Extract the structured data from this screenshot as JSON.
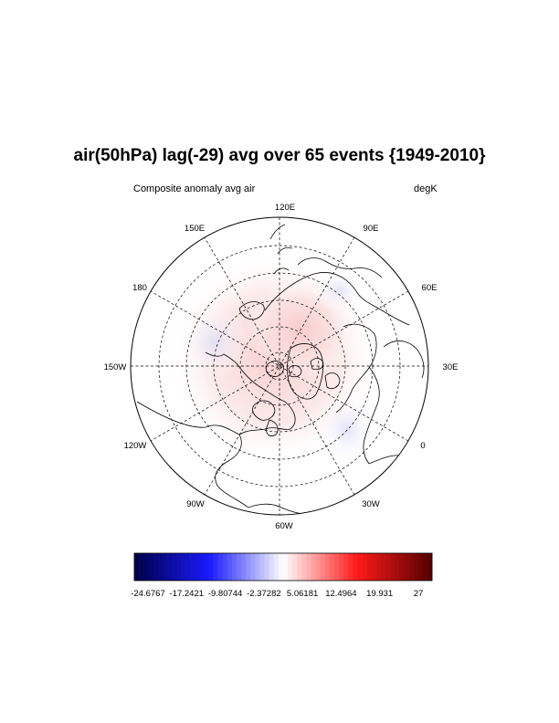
{
  "plot": {
    "title": "air(50hPa) lag(-29) avg over 65 events {1949-2010}",
    "left_string": "Composite anomaly avg air",
    "right_string": "degK"
  },
  "map": {
    "projection": "north-polar-stereographic",
    "longitude_labels": [
      "120E",
      "90E",
      "60E",
      "30E",
      "0",
      "30W",
      "60W",
      "90W",
      "120W",
      "150W",
      "180",
      "150E"
    ]
  },
  "colorbar": {
    "labels": [
      "-24.6767",
      "-17.2421",
      "-9.80744",
      "-2.37282",
      "5.06181",
      "12.4964",
      "19.931",
      "27"
    ],
    "min": -24.6767,
    "max": 27,
    "colors": {
      "low": "#00004c",
      "mid_low": "#1a1aff",
      "neutral": "#ffffff",
      "mid_high": "#ff1a1a",
      "high": "#5a0000"
    }
  }
}
